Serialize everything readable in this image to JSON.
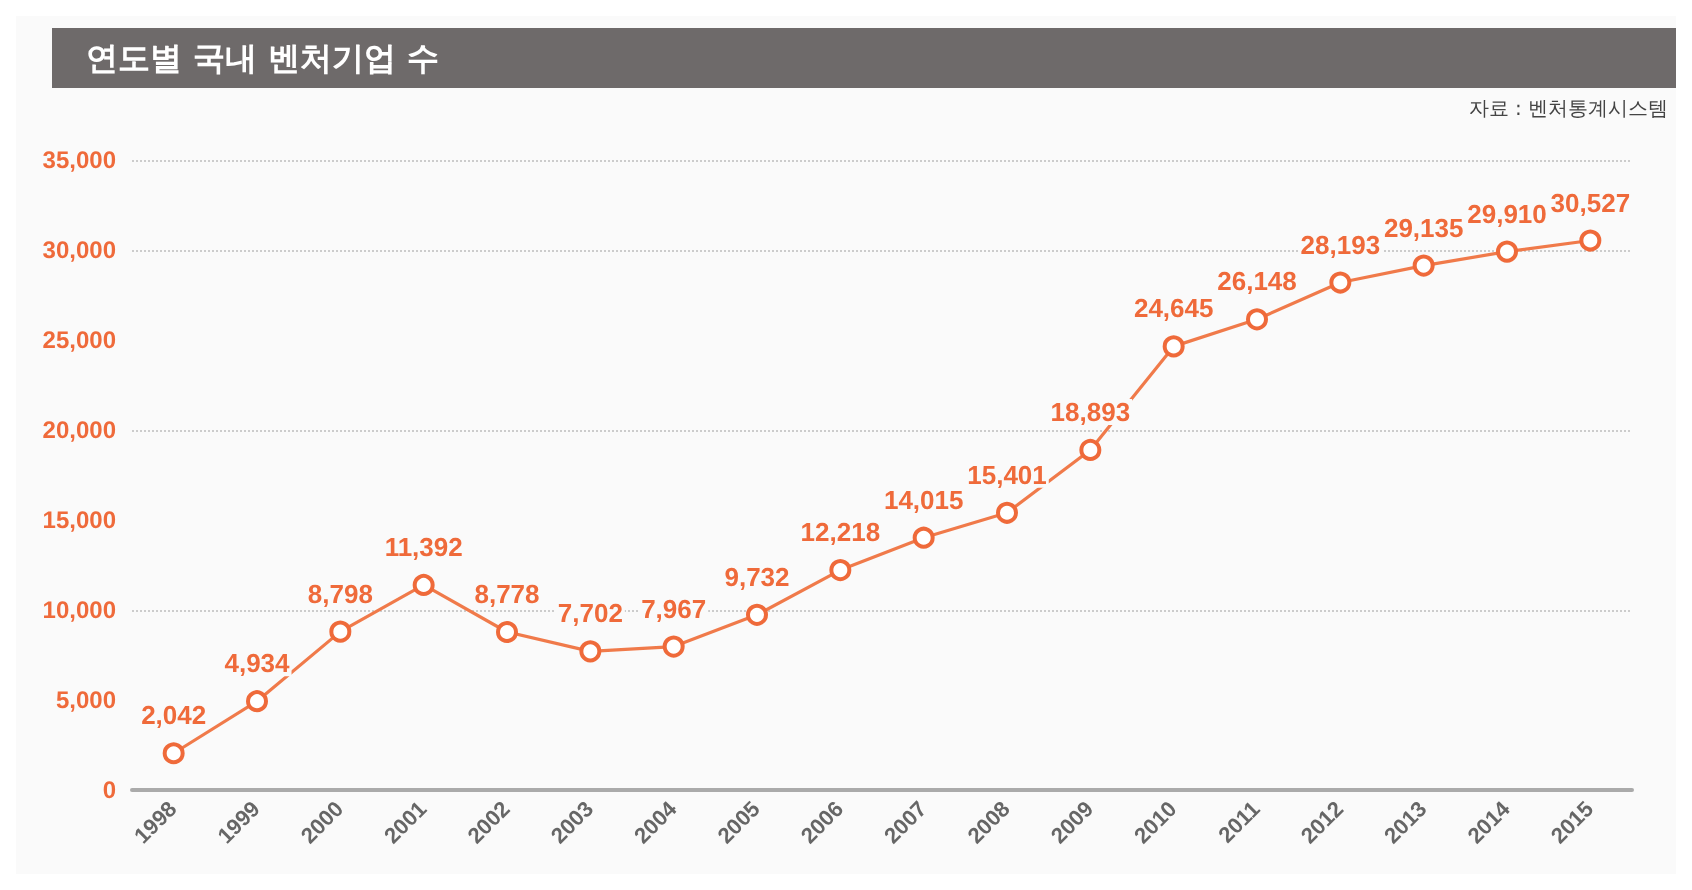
{
  "chart_data": {
    "type": "line",
    "title": "연도별 국내 벤처기업 수",
    "annotations": [
      "자료 : 벤처통계시스템"
    ],
    "categories": [
      "1998",
      "1999",
      "2000",
      "2001",
      "2002",
      "2003",
      "2004",
      "2005",
      "2006",
      "2007",
      "2008",
      "2009",
      "2010",
      "2011",
      "2012",
      "2013",
      "2014",
      "2015"
    ],
    "series": [
      {
        "color": "#f07a4a",
        "values": [
          2042,
          4934,
          8798,
          11392,
          8778,
          7702,
          7967,
          9732,
          12218,
          14015,
          15401,
          18893,
          24645,
          26148,
          28193,
          29135,
          29910,
          30527
        ],
        "value_labels": [
          "2,042",
          "4,934",
          "8,798",
          "11,392",
          "8,778",
          "7,702",
          "7,967",
          "9,732",
          "12,218",
          "14,015",
          "15,401",
          "18,893",
          "24,645",
          "26,148",
          "28,193",
          "29,135",
          "29,910",
          "30,527"
        ]
      }
    ],
    "ylim": [
      0,
      35000
    ],
    "yticks": [
      0,
      {
        "value": 5000,
        "label": "5,000"
      },
      {
        "value": 10000,
        "label": "10,000"
      },
      {
        "value": 15000,
        "label": "15,000"
      },
      {
        "value": 20000,
        "label": "20,000"
      },
      {
        "value": 25000,
        "label": "25,000"
      },
      {
        "value": 30000,
        "label": "30,000"
      },
      {
        "value": 35000,
        "label": "35,000"
      }
    ],
    "grid": "y",
    "marker": "circle",
    "line_style": "solid"
  }
}
